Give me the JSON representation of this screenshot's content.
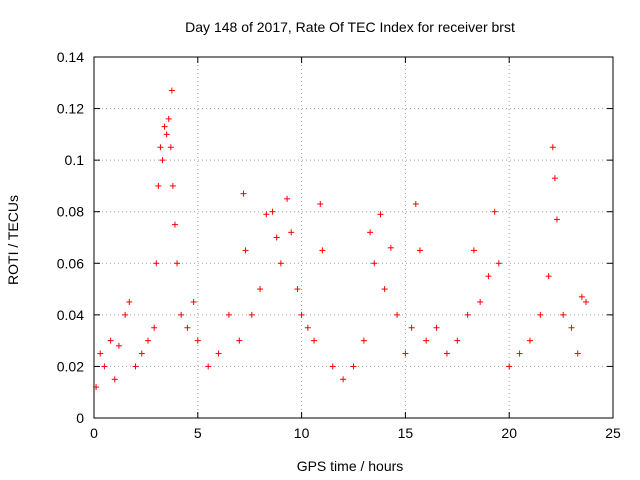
{
  "chart_data": {
    "type": "scatter",
    "title": "Day 148 of 2017, Rate Of TEC Index for receiver brst",
    "xlabel": "GPS time / hours",
    "ylabel": "ROTI / TECUs",
    "xlim": [
      0,
      25
    ],
    "ylim": [
      0,
      0.14
    ],
    "xticks": [
      0,
      5,
      10,
      15,
      20,
      25
    ],
    "yticks": [
      0,
      0.02,
      0.04,
      0.06,
      0.08,
      0.1,
      0.12,
      0.14
    ],
    "xtick_labels": [
      "0",
      "5",
      "10",
      "15",
      "20",
      "25"
    ],
    "ytick_labels": [
      "0",
      "0.02",
      "0.04",
      "0.06",
      "0.08",
      "0.1",
      "0.12",
      "0.14"
    ],
    "grid": true,
    "marker": "+",
    "series": [
      {
        "color": "#ff0000",
        "points": [
          [
            0.1,
            0.012
          ],
          [
            0.3,
            0.025
          ],
          [
            0.5,
            0.02
          ],
          [
            0.8,
            0.03
          ],
          [
            1.0,
            0.015
          ],
          [
            1.2,
            0.028
          ],
          [
            1.5,
            0.04
          ],
          [
            1.7,
            0.045
          ],
          [
            2.0,
            0.02
          ],
          [
            2.3,
            0.025
          ],
          [
            2.6,
            0.03
          ],
          [
            2.9,
            0.035
          ],
          [
            3.0,
            0.06
          ],
          [
            3.1,
            0.09
          ],
          [
            3.2,
            0.105
          ],
          [
            3.3,
            0.1
          ],
          [
            3.4,
            0.113
          ],
          [
            3.5,
            0.11
          ],
          [
            3.6,
            0.116
          ],
          [
            3.7,
            0.105
          ],
          [
            3.75,
            0.127
          ],
          [
            3.8,
            0.09
          ],
          [
            3.9,
            0.075
          ],
          [
            4.0,
            0.06
          ],
          [
            4.2,
            0.04
          ],
          [
            4.5,
            0.035
          ],
          [
            4.8,
            0.045
          ],
          [
            5.0,
            0.03
          ],
          [
            5.5,
            0.02
          ],
          [
            6.0,
            0.025
          ],
          [
            6.5,
            0.04
          ],
          [
            7.0,
            0.03
          ],
          [
            7.2,
            0.087
          ],
          [
            7.3,
            0.065
          ],
          [
            7.6,
            0.04
          ],
          [
            8.0,
            0.05
          ],
          [
            8.3,
            0.079
          ],
          [
            8.6,
            0.08
          ],
          [
            8.8,
            0.07
          ],
          [
            9.0,
            0.06
          ],
          [
            9.3,
            0.085
          ],
          [
            9.5,
            0.072
          ],
          [
            9.8,
            0.05
          ],
          [
            10.0,
            0.04
          ],
          [
            10.3,
            0.035
          ],
          [
            10.6,
            0.03
          ],
          [
            10.9,
            0.083
          ],
          [
            11.0,
            0.065
          ],
          [
            11.5,
            0.02
          ],
          [
            12.0,
            0.015
          ],
          [
            12.5,
            0.02
          ],
          [
            13.0,
            0.03
          ],
          [
            13.3,
            0.072
          ],
          [
            13.5,
            0.06
          ],
          [
            13.8,
            0.079
          ],
          [
            14.0,
            0.05
          ],
          [
            14.3,
            0.066
          ],
          [
            14.6,
            0.04
          ],
          [
            15.0,
            0.025
          ],
          [
            15.3,
            0.035
          ],
          [
            15.5,
            0.083
          ],
          [
            15.7,
            0.065
          ],
          [
            16.0,
            0.03
          ],
          [
            16.5,
            0.035
          ],
          [
            17.0,
            0.025
          ],
          [
            17.5,
            0.03
          ],
          [
            18.0,
            0.04
          ],
          [
            18.3,
            0.065
          ],
          [
            18.6,
            0.045
          ],
          [
            19.0,
            0.055
          ],
          [
            19.3,
            0.08
          ],
          [
            19.5,
            0.06
          ],
          [
            20.0,
            0.02
          ],
          [
            20.5,
            0.025
          ],
          [
            21.0,
            0.03
          ],
          [
            21.5,
            0.04
          ],
          [
            21.9,
            0.055
          ],
          [
            22.1,
            0.105
          ],
          [
            22.2,
            0.093
          ],
          [
            22.3,
            0.077
          ],
          [
            22.6,
            0.04
          ],
          [
            23.0,
            0.035
          ],
          [
            23.3,
            0.025
          ],
          [
            23.5,
            0.047
          ],
          [
            23.7,
            0.045
          ]
        ]
      }
    ]
  }
}
